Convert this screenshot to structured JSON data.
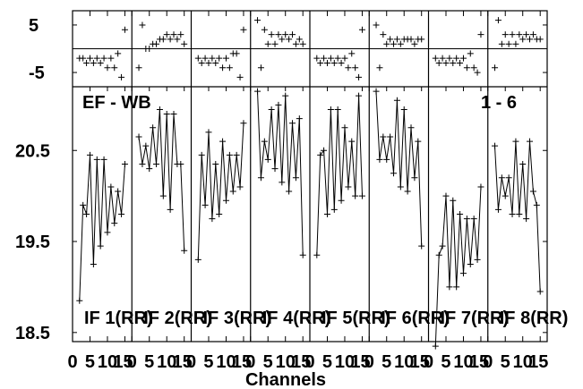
{
  "chart_data": {
    "type": "line",
    "title": "",
    "annotations": {
      "baseline": "EF - WB",
      "pair": "1 - 6"
    },
    "xlabel": "Channels",
    "x_ticks": [
      "0",
      "5",
      "10",
      "15"
    ],
    "x_tick_labels_rendered": [
      "0",
      "5",
      "10",
      "15"
    ],
    "ylim_top": [
      -8,
      8
    ],
    "y_ticks_top": [
      "5",
      "-5"
    ],
    "ylim_main": [
      18.4,
      21.2
    ],
    "y_ticks_main": [
      "18.5",
      "19.5",
      "20.5"
    ],
    "panels": [
      {
        "label": "IF 1(RR)",
        "x": [
          2,
          3,
          4,
          5,
          6,
          7,
          8,
          9,
          10,
          11,
          12,
          13,
          14,
          15
        ],
        "amplitude": [
          18.85,
          19.9,
          19.8,
          20.45,
          19.25,
          20.4,
          19.45,
          20.4,
          19.6,
          20.1,
          19.7,
          20.05,
          19.8,
          20.35
        ],
        "residual": [
          -2,
          -2,
          -3,
          -2,
          -3,
          -2,
          -3,
          -2,
          -4,
          -2,
          -4,
          -1,
          -6,
          4
        ]
      },
      {
        "label": "IF 2(RR)",
        "x": [
          2,
          3,
          4,
          5,
          6,
          7,
          8,
          9,
          10,
          11,
          12,
          13,
          14,
          15
        ],
        "amplitude": [
          20.65,
          20.35,
          20.55,
          20.3,
          20.75,
          20.35,
          20.95,
          20.0,
          20.9,
          19.85,
          20.9,
          20.35,
          20.35,
          19.4
        ],
        "residual": [
          -4,
          5,
          0,
          0,
          1,
          1,
          2,
          2,
          3,
          2,
          3,
          2,
          3,
          1
        ]
      },
      {
        "label": "IF 3(RR)",
        "x": [
          2,
          3,
          4,
          5,
          6,
          7,
          8,
          9,
          10,
          11,
          12,
          13,
          14,
          15
        ],
        "amplitude": [
          19.3,
          20.45,
          19.9,
          20.7,
          19.75,
          20.35,
          19.8,
          20.6,
          19.95,
          20.45,
          20.05,
          20.45,
          20.1,
          20.8
        ],
        "residual": [
          -2,
          -3,
          -2,
          -3,
          -2,
          -3,
          -2,
          -4,
          -2,
          -4,
          -1,
          -1,
          -6,
          4
        ]
      },
      {
        "label": "IF 4(RR)",
        "x": [
          2,
          3,
          4,
          5,
          6,
          7,
          8,
          9,
          10,
          11,
          12,
          13,
          14,
          15
        ],
        "amplitude": [
          21.15,
          20.2,
          20.6,
          20.4,
          20.95,
          20.3,
          21.0,
          20.15,
          21.1,
          20.05,
          20.8,
          20.2,
          20.85,
          19.35
        ],
        "residual": [
          6,
          -4,
          4,
          1,
          3,
          1,
          3,
          2,
          3,
          2,
          3,
          1,
          2,
          1
        ]
      },
      {
        "label": "IF 5(RR)",
        "x": [
          2,
          3,
          4,
          5,
          6,
          7,
          8,
          9,
          10,
          11,
          12,
          13,
          14,
          15
        ],
        "amplitude": [
          19.35,
          20.45,
          20.5,
          19.8,
          20.95,
          19.85,
          20.95,
          19.95,
          20.75,
          20.1,
          20.6,
          20.0,
          21.1,
          20.0
        ],
        "residual": [
          -2,
          -3,
          -2,
          -3,
          -2,
          -3,
          -2,
          -3,
          -2,
          -4,
          -1,
          -4,
          -6,
          4
        ]
      },
      {
        "label": "IF 6(RR)",
        "x": [
          2,
          3,
          4,
          5,
          6,
          7,
          8,
          9,
          10,
          11,
          12,
          13,
          14,
          15
        ],
        "amplitude": [
          21.15,
          20.4,
          20.65,
          20.4,
          20.65,
          20.25,
          21.05,
          20.1,
          20.95,
          20.05,
          20.75,
          20.2,
          20.6,
          19.45
        ],
        "residual": [
          5,
          -4,
          3,
          1,
          2,
          1,
          2,
          1,
          2,
          2,
          2,
          1,
          2,
          2
        ]
      },
      {
        "label": "IF 7(RR)",
        "x": [
          2,
          3,
          4,
          5,
          6,
          7,
          8,
          9,
          10,
          11,
          12,
          13,
          14,
          15
        ],
        "amplitude": [
          18.35,
          19.35,
          19.45,
          20.0,
          19.0,
          19.95,
          19.0,
          19.8,
          19.15,
          19.75,
          19.25,
          19.75,
          19.3,
          20.1
        ],
        "residual": [
          -2,
          -3,
          -2,
          -3,
          -2,
          -3,
          -2,
          -3,
          -2,
          -4,
          -1,
          -4,
          -5,
          3
        ]
      },
      {
        "label": "IF 8(RR)",
        "x": [
          2,
          3,
          4,
          5,
          6,
          7,
          8,
          9,
          10,
          11,
          12,
          13,
          14,
          15
        ],
        "amplitude": [
          20.55,
          19.85,
          20.2,
          20.0,
          20.2,
          19.8,
          20.6,
          19.8,
          20.35,
          19.75,
          20.6,
          20.05,
          19.9,
          18.95
        ],
        "residual": [
          -4,
          6,
          1,
          3,
          1,
          3,
          1,
          3,
          2,
          3,
          2,
          3,
          2,
          2
        ]
      }
    ]
  }
}
